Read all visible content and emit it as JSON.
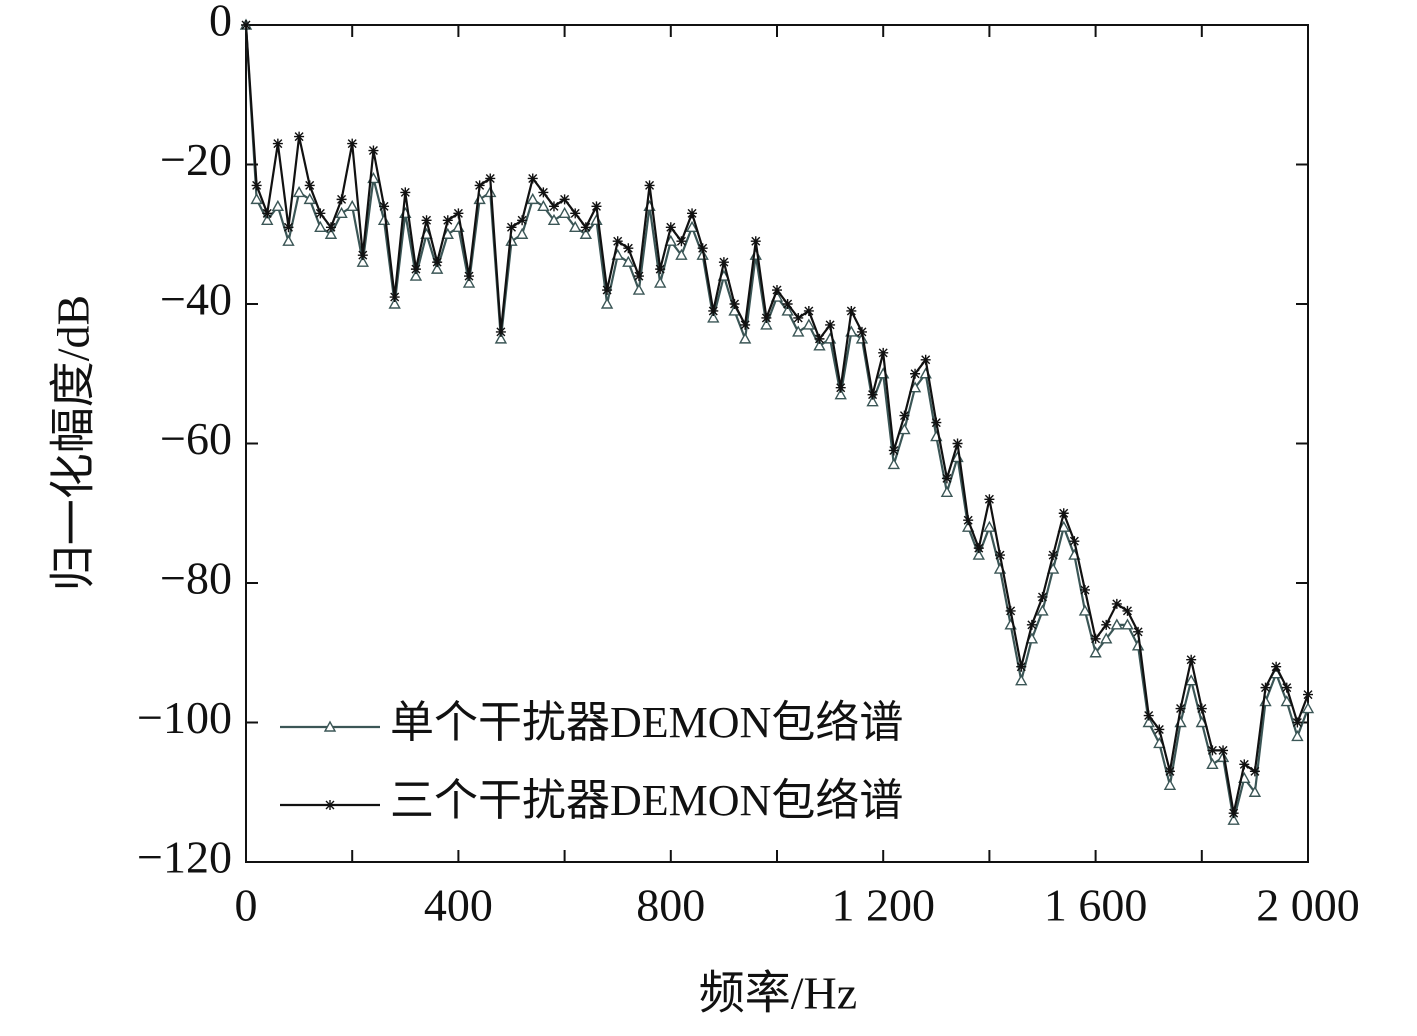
{
  "chart_data": {
    "type": "line",
    "x_label": "频率/Hz",
    "y_label": "归一化幅度/dB",
    "x": [
      0,
      20,
      40,
      60,
      80,
      100,
      120,
      140,
      160,
      180,
      200,
      220,
      240,
      260,
      280,
      300,
      320,
      340,
      360,
      380,
      400,
      420,
      440,
      460,
      480,
      500,
      520,
      540,
      560,
      580,
      600,
      620,
      640,
      660,
      680,
      700,
      720,
      740,
      760,
      780,
      800,
      820,
      840,
      860,
      880,
      900,
      920,
      940,
      960,
      980,
      1000,
      1020,
      1040,
      1060,
      1080,
      1100,
      1120,
      1140,
      1160,
      1180,
      1200,
      1220,
      1240,
      1260,
      1280,
      1300,
      1320,
      1340,
      1360,
      1380,
      1400,
      1420,
      1440,
      1460,
      1480,
      1500,
      1520,
      1540,
      1560,
      1580,
      1600,
      1620,
      1640,
      1660,
      1680,
      1700,
      1720,
      1740,
      1760,
      1780,
      1800,
      1820,
      1840,
      1860,
      1880,
      1900,
      1920,
      1940,
      1960,
      1980,
      2000
    ],
    "series": [
      {
        "name": "单个干扰器DEMON包络谱",
        "color": "#3b5656",
        "marker": "triangle",
        "values": [
          0,
          -25,
          -28,
          -26,
          -31,
          -24,
          -25,
          -29,
          -30,
          -27,
          -26,
          -34,
          -22,
          -28,
          -40,
          -27,
          -36,
          -30,
          -35,
          -30,
          -29,
          -37,
          -25,
          -24,
          -45,
          -31,
          -30,
          -25,
          -26,
          -28,
          -27,
          -29,
          -30,
          -28,
          -40,
          -33,
          -34,
          -38,
          -26,
          -37,
          -31,
          -33,
          -29,
          -33,
          -42,
          -36,
          -41,
          -45,
          -33,
          -43,
          -39,
          -41,
          -44,
          -43,
          -46,
          -45,
          -53,
          -44,
          -45,
          -54,
          -50,
          -63,
          -58,
          -52,
          -50,
          -59,
          -67,
          -62,
          -72,
          -76,
          -72,
          -78,
          -86,
          -94,
          -88,
          -84,
          -78,
          -72,
          -76,
          -84,
          -90,
          -88,
          -86,
          -86,
          -89,
          -100,
          -103,
          -109,
          -100,
          -94,
          -100,
          -106,
          -105,
          -114,
          -108,
          -110,
          -97,
          -93,
          -97,
          -102,
          -98
        ]
      },
      {
        "name": "三个干扰器DEMON包络谱",
        "color": "#111111",
        "marker": "star",
        "values": [
          0,
          -23,
          -27,
          -17,
          -29,
          -16,
          -23,
          -27,
          -29,
          -25,
          -17,
          -33,
          -18,
          -26,
          -39,
          -24,
          -35,
          -28,
          -34,
          -28,
          -27,
          -36,
          -23,
          -22,
          -44,
          -29,
          -28,
          -22,
          -24,
          -26,
          -25,
          -27,
          -29,
          -26,
          -38,
          -31,
          -32,
          -36,
          -23,
          -35,
          -29,
          -31,
          -27,
          -32,
          -41,
          -34,
          -40,
          -43,
          -31,
          -42,
          -38,
          -40,
          -42,
          -41,
          -45,
          -43,
          -52,
          -41,
          -44,
          -53,
          -47,
          -61,
          -56,
          -50,
          -48,
          -57,
          -65,
          -60,
          -71,
          -75,
          -68,
          -76,
          -84,
          -92,
          -86,
          -82,
          -76,
          -70,
          -74,
          -81,
          -88,
          -86,
          -83,
          -84,
          -87,
          -99,
          -101,
          -107,
          -98,
          -91,
          -98,
          -104,
          -104,
          -113,
          -106,
          -107,
          -95,
          -92,
          -95,
          -100,
          -96
        ]
      }
    ],
    "xlim": [
      0,
      2000
    ],
    "xticks": [
      0,
      400,
      800,
      {
        "value": 1200,
        "label": "1 200"
      },
      {
        "value": 1600,
        "label": "1 600"
      },
      {
        "value": 2000,
        "label": "2 000"
      }
    ],
    "xminor_ticks": [
      200,
      600,
      1000,
      1400,
      1800
    ],
    "ylim": [
      -120,
      0
    ],
    "yticks": [
      0,
      {
        "value": -20,
        "label": "−20"
      },
      {
        "value": -40,
        "label": "−40"
      },
      {
        "value": -60,
        "label": "−60"
      },
      {
        "value": -80,
        "label": "−80"
      },
      {
        "value": -100,
        "label": "−100"
      },
      {
        "value": -120,
        "label": "−120"
      }
    ],
    "legend": "lower left",
    "grid": false
  }
}
